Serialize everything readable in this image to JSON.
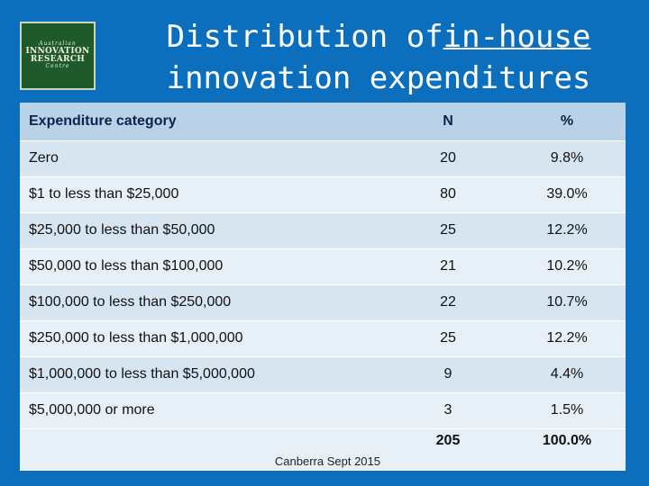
{
  "logo": {
    "line1": "Australian",
    "line2": "INNOVATION",
    "line3": "RESEARCH",
    "line4": "Centre"
  },
  "title": {
    "line1_a": "Distribution of",
    "line1_b": "in-house",
    "line2": "innovation expenditures"
  },
  "table": {
    "headers": {
      "category": "Expenditure category",
      "n": "N",
      "pct": "%"
    },
    "rows": [
      {
        "category": "Zero",
        "n": "20",
        "pct": "9.8%"
      },
      {
        "category": "$1 to less than $25,000",
        "n": "80",
        "pct": "39.0%"
      },
      {
        "category": "$25,000 to less than $50,000",
        "n": "25",
        "pct": "12.2%"
      },
      {
        "category": "$50,000 to less than $100,000",
        "n": "21",
        "pct": "10.2%"
      },
      {
        "category": "$100,000 to less than $250,000",
        "n": "22",
        "pct": "10.7%"
      },
      {
        "category": "$250,000 to less than $1,000,000",
        "n": "25",
        "pct": "12.2%"
      },
      {
        "category": "$1,000,000 to less than $5,000,000",
        "n": "9",
        "pct": "4.4%"
      },
      {
        "category": "$5,000,000 or more",
        "n": "3",
        "pct": "1.5%"
      }
    ],
    "total": {
      "n": "205",
      "pct": "100.0%"
    }
  },
  "footer": "Canberra Sept 2015",
  "colors": {
    "background": "#0b6fbe",
    "header_row": "#b9d2e8",
    "row": "#d7e5f1",
    "row_alt": "#e8f0f7"
  }
}
